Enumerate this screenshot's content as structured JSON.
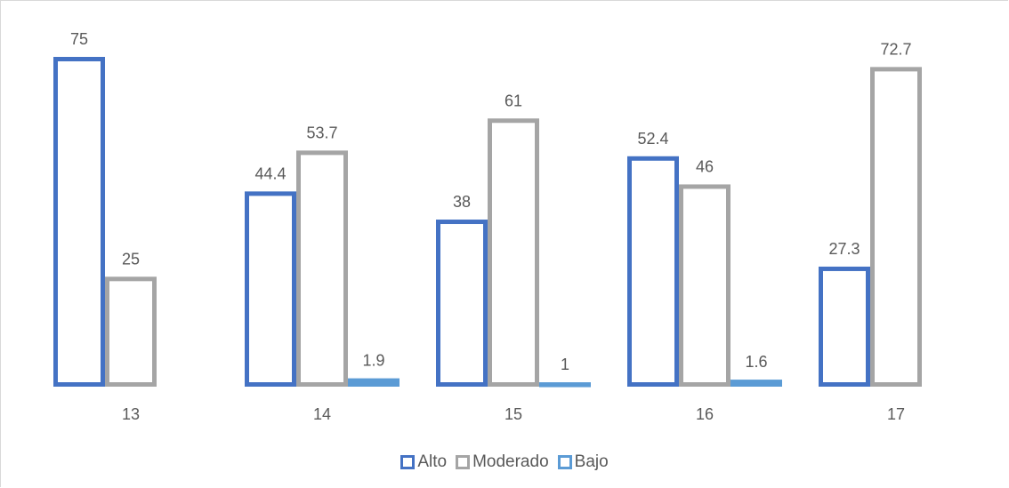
{
  "chart_data": {
    "type": "bar",
    "categories": [
      "13",
      "14",
      "15",
      "16",
      "17"
    ],
    "series": [
      {
        "name": "Alto",
        "color": "#4472C4",
        "values": [
          75,
          44.4,
          38,
          52.4,
          27.3
        ]
      },
      {
        "name": "Moderado",
        "color": "#A5A5A5",
        "values": [
          25,
          53.7,
          61,
          46,
          72.7
        ]
      },
      {
        "name": "Bajo",
        "color": "#5B9BD5",
        "values": [
          null,
          1.9,
          1,
          1.6,
          null
        ]
      }
    ],
    "title": "",
    "xlabel": "",
    "ylabel": "",
    "ylim": [
      0,
      75
    ],
    "grid": false,
    "legend_position": "bottom",
    "bar_style": "outlined"
  }
}
